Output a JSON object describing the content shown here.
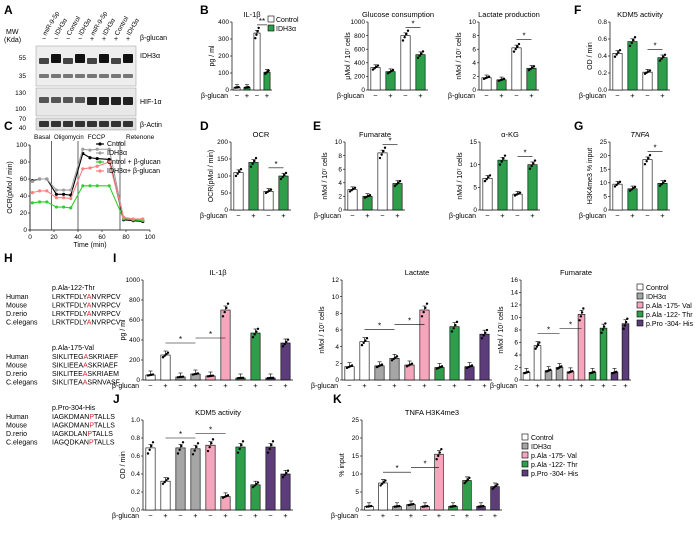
{
  "panel_letters": [
    "A",
    "B",
    "C",
    "D",
    "E",
    "F",
    "G",
    "H",
    "I",
    "J",
    "K"
  ],
  "blot": {
    "mw_label": "MW",
    "kda_label": "(Kda)",
    "lanes": [
      "miR-9-5p",
      "IDH3α",
      "Control",
      "IDH3α",
      "miR-9-5p",
      "IDH3α",
      "Control",
      "IDH3α"
    ],
    "lanes_top": [
      "miR-9-5p",
      "miR-9-5p"
    ],
    "treatment_label": "β-glucan",
    "treatment": [
      "−",
      "−",
      "−",
      "−",
      "+",
      "+",
      "+",
      "+"
    ],
    "mw": [
      "55",
      "35",
      "130",
      "100",
      "70",
      "40"
    ],
    "bands": [
      "IDH3α",
      "HIF-1α",
      "β-Actin"
    ]
  },
  "seahorse": {
    "ylabel": "OCR(pMol / min)",
    "xlabel": "Time (min)",
    "phases": [
      "Basal",
      "Oligomycin",
      "FCCP",
      "Retenone"
    ],
    "xticks": [
      "0",
      "20",
      "40",
      "60",
      "80",
      "100"
    ],
    "yticks": [
      "0",
      "20",
      "40",
      "60",
      "80",
      "100"
    ],
    "legend": [
      "Cntrol",
      "IDH3α",
      "Cntrol + β-glucan",
      "IDH3α+ β-glucan"
    ],
    "colors": [
      "#000000",
      "#9e9e9e",
      "#33cc33",
      "#ff8080"
    ]
  },
  "colors": {
    "control": "#ffffff",
    "idh3a": "#2e9e4a",
    "val": "#f4a6bd",
    "thr": "#2e9e4a",
    "his": "#5c3d7a",
    "gray": "#a6a6a6"
  },
  "treatment_label": "β-glucan",
  "legend_b": [
    "Control",
    "IDH3α"
  ],
  "legend_i": [
    "Control",
    "IDH3α",
    "p.Ala -175- Val",
    "p.Ala -122- Thr",
    "p.Pro -304- His"
  ],
  "legend_k": [
    "Control",
    "IDH3α",
    "p.Ala -175- Val",
    "p.Ala -122- Thr",
    "p.Pro -304- His"
  ],
  "alignments": [
    {
      "title": "p.Ala-122-Thr",
      "species": [
        "Human",
        "Mouse",
        "D.rerio",
        "C.elegans"
      ],
      "pre": [
        "LRKTFDLY",
        "LRKTFDLY",
        "LRKTFDLY",
        "LRKTFDLY"
      ],
      "aa": [
        "A",
        "A",
        "A",
        "A"
      ],
      "post": [
        "NVRPCV",
        "NVRPCV",
        "NVRPCV",
        "NVRPCV"
      ]
    },
    {
      "title": "p.Ala-175-Val",
      "species": [
        "Human",
        "Mouse",
        "D.rerio",
        "C.elegans"
      ],
      "pre": [
        "SIKLITEG",
        "SIKLIEEA",
        "SIKLITEE",
        "SIKLITEA"
      ],
      "aa": [
        "A",
        "A",
        "A",
        "A"
      ],
      "post": [
        "SKRIAEF",
        "SKRIAEF",
        "SKRIAEM",
        "SRNVASF"
      ]
    },
    {
      "title": "p.Pro-304-His",
      "species": [
        "Human",
        "Mouse",
        "D.rerio",
        "C.elegans"
      ],
      "pre": [
        "IAGKDMAN",
        "IAGKDMAN",
        "IAGKDLAN",
        "IAGQDKAN"
      ],
      "aa": [
        "P",
        "P",
        "P",
        "P"
      ],
      "post": [
        "TALLS",
        "TALLS",
        "TALLS",
        "TALLS"
      ]
    }
  ],
  "chart_data": [
    {
      "id": "B1",
      "type": "bar",
      "title": "IL-1β",
      "ylabel": "pg / ml",
      "ylim": [
        0,
        400
      ],
      "yticks": [
        "0",
        "100",
        "200",
        "300",
        "400"
      ],
      "treat": [
        "−",
        "+",
        "−",
        "+"
      ],
      "values": [
        15,
        15,
        335,
        105
      ],
      "groups": [
        "Control",
        "IDH3α",
        "Control",
        "IDH3α"
      ],
      "sig": [
        "**"
      ]
    },
    {
      "id": "B2",
      "type": "bar",
      "title": "Glucose consumption",
      "ylabel": "μMol / 10⁷ cells",
      "ylim": [
        0,
        1000
      ],
      "yticks": [
        "0",
        "200",
        "400",
        "600",
        "800",
        "1000"
      ],
      "treat": [
        "−",
        "+",
        "−",
        "+"
      ],
      "values": [
        330,
        270,
        800,
        520
      ],
      "groups": [
        "Control",
        "IDH3α",
        "Control",
        "IDH3α"
      ],
      "sig": [
        "*"
      ]
    },
    {
      "id": "B3",
      "type": "bar",
      "title": "Lactate production",
      "ylabel": "nMol / 10⁷ cells",
      "ylim": [
        0,
        10
      ],
      "yticks": [
        "0",
        "2",
        "4",
        "6",
        "8",
        "10"
      ],
      "treat": [
        "−",
        "+",
        "−",
        "+"
      ],
      "values": [
        1.8,
        1.5,
        6.2,
        3.2
      ],
      "groups": [
        "Control",
        "IDH3α",
        "Control",
        "IDH3α"
      ],
      "sig": [
        "*"
      ]
    },
    {
      "id": "F",
      "type": "bar",
      "title": "KDM5 activity",
      "ylabel": "OD / min",
      "ylim": [
        0,
        0.8
      ],
      "yticks": [
        "0.0",
        "0.2",
        "0.4",
        "0.6",
        "0.8"
      ],
      "treat": [
        "−",
        "+",
        "−",
        "+"
      ],
      "values": [
        0.43,
        0.57,
        0.21,
        0.38
      ],
      "groups": [
        "Control",
        "IDH3α",
        "Control",
        "IDH3α"
      ],
      "sig": [
        "*"
      ]
    },
    {
      "id": "D",
      "type": "bar",
      "title": "OCR",
      "ylabel": "OCR(pMol / min)",
      "ylim": [
        0,
        200
      ],
      "yticks": [
        "0",
        "50",
        "100",
        "150",
        "200"
      ],
      "treat": [
        "−",
        "+",
        "−",
        "+"
      ],
      "values": [
        110,
        140,
        55,
        100
      ],
      "groups": [
        "Control",
        "IDH3α",
        "Control",
        "IDH3α"
      ],
      "sig": [
        "*"
      ]
    },
    {
      "id": "E1",
      "type": "bar",
      "title": "Fumarate",
      "ylabel": "nMol / 10⁷ cells",
      "ylim": [
        0,
        10
      ],
      "yticks": [
        "0",
        "2",
        "4",
        "6",
        "8",
        "10"
      ],
      "treat": [
        "−",
        "+",
        "−",
        "+"
      ],
      "values": [
        3.0,
        2.0,
        8.4,
        3.9
      ],
      "groups": [
        "Control",
        "IDH3α",
        "Control",
        "IDH3α"
      ],
      "sig": [
        "*"
      ]
    },
    {
      "id": "E2",
      "type": "bar",
      "title": "α-KG",
      "ylabel": "nMol / 10⁷ cells",
      "ylim": [
        0,
        15
      ],
      "yticks": [
        "0",
        "5",
        "10",
        "15"
      ],
      "treat": [
        "−",
        "+",
        "−",
        "+"
      ],
      "values": [
        7,
        11,
        3.5,
        10
      ],
      "groups": [
        "Control",
        "IDH3α",
        "Control",
        "IDH3α"
      ],
      "sig": [
        "*"
      ]
    },
    {
      "id": "G",
      "type": "bar",
      "title": "TNFA",
      "ylabel": "H3K4me3 % input",
      "ylim": [
        0,
        25
      ],
      "yticks": [
        "0",
        "5",
        "10",
        "15",
        "20",
        "25"
      ],
      "treat": [
        "−",
        "+",
        "−",
        "+"
      ],
      "values": [
        9.5,
        7.8,
        18.5,
        9.8
      ],
      "groups": [
        "Control",
        "IDH3α",
        "Control",
        "IDH3α"
      ],
      "sig": [
        "*"
      ]
    },
    {
      "id": "I1",
      "type": "bar",
      "title": "IL-1β",
      "ylabel": "pg / ml",
      "ylim": [
        0,
        1000
      ],
      "yticks": [
        "0",
        "200",
        "400",
        "600",
        "800",
        "1000"
      ],
      "treat": [
        "−",
        "+",
        "−",
        "+",
        "−",
        "+",
        "−",
        "+",
        "−",
        "+"
      ],
      "values": [
        50,
        250,
        30,
        60,
        40,
        700,
        20,
        470,
        20,
        370
      ],
      "groups": [
        "Control",
        "Control",
        "IDH3α",
        "IDH3α",
        "p.Ala -175- Val",
        "p.Ala -175- Val",
        "p.Ala -122- Thr",
        "p.Ala -122- Thr",
        "p.Pro -304- His",
        "p.Pro -304- His"
      ],
      "sig": [
        "*",
        "*"
      ]
    },
    {
      "id": "I2",
      "type": "bar",
      "title": "Lactate",
      "ylabel": "nMol / 10⁷ cells",
      "ylim": [
        0,
        12
      ],
      "yticks": [
        "0",
        "2",
        "4",
        "6",
        "8",
        "10",
        "12"
      ],
      "treat": [
        "−",
        "+",
        "−",
        "+",
        "−",
        "+",
        "−",
        "+",
        "−",
        "+"
      ],
      "values": [
        1.6,
        4.6,
        1.7,
        2.6,
        1.8,
        8.4,
        1.5,
        6.4,
        1.6,
        5.5
      ],
      "groups": [
        "Control",
        "Control",
        "IDH3α",
        "IDH3α",
        "p.Ala -175- Val",
        "p.Ala -175- Val",
        "p.Ala -122- Thr",
        "p.Ala -122- Thr",
        "p.Pro -304- His",
        "p.Pro -304- His"
      ],
      "sig": [
        "*",
        "*"
      ]
    },
    {
      "id": "I3",
      "type": "bar",
      "title": "Fumarate",
      "ylabel": "nMol / 10⁷ cells",
      "ylim": [
        0,
        16
      ],
      "yticks": [
        "0",
        "2",
        "4",
        "6",
        "8",
        "10",
        "12",
        "14",
        "16"
      ],
      "treat": [
        "−",
        "+",
        "−",
        "+",
        "−",
        "+",
        "−",
        "+",
        "−",
        "+"
      ],
      "values": [
        1.2,
        5.5,
        1.5,
        2.0,
        1.3,
        10.5,
        1.2,
        8.3,
        1.2,
        9.0
      ],
      "groups": [
        "Control",
        "Control",
        "IDH3α",
        "IDH3α",
        "p.Ala -175- Val",
        "p.Ala -175- Val",
        "p.Ala -122- Thr",
        "p.Ala -122- Thr",
        "p.Pro -304- His",
        "p.Pro -304- His"
      ],
      "sig": [
        "*",
        "*"
      ]
    },
    {
      "id": "J",
      "type": "bar",
      "title": "KDM5 activity",
      "ylabel": "OD / min",
      "ylim": [
        0,
        1.0
      ],
      "yticks": [
        "0.0",
        "0.2",
        "0.4",
        "0.6",
        "0.8",
        "1.0"
      ],
      "treat": [
        "−",
        "+",
        "−",
        "+",
        "−",
        "+",
        "−",
        "+",
        "−",
        "+"
      ],
      "values": [
        0.69,
        0.32,
        0.69,
        0.68,
        0.72,
        0.15,
        0.7,
        0.28,
        0.7,
        0.4
      ],
      "groups": [
        "Control",
        "Control",
        "IDH3α",
        "IDH3α",
        "p.Ala -175- Val",
        "p.Ala -175- Val",
        "p.Ala -122- Thr",
        "p.Ala -122- Thr",
        "p.Pro -304- His",
        "p.Pro -304- His"
      ],
      "sig": [
        "*",
        "*"
      ]
    },
    {
      "id": "K",
      "type": "bar",
      "title": "TNFA H3K4me3",
      "ylabel": "% input",
      "ylim": [
        0,
        25
      ],
      "yticks": [
        "0",
        "5",
        "10",
        "15",
        "20",
        "25"
      ],
      "treat": [
        "−",
        "+",
        "−",
        "+",
        "−",
        "+",
        "−",
        "+",
        "−",
        "+"
      ],
      "values": [
        1,
        7.5,
        1,
        1.5,
        1,
        15.5,
        1,
        8.2,
        1,
        6.5
      ],
      "groups": [
        "Control",
        "Control",
        "IDH3α",
        "IDH3α",
        "p.Ala -175- Val",
        "p.Ala -175- Val",
        "p.Ala -122- Thr",
        "p.Ala -122- Thr",
        "p.Pro -304- His",
        "p.Pro -304- His"
      ],
      "sig": [
        "*",
        "*"
      ]
    }
  ]
}
